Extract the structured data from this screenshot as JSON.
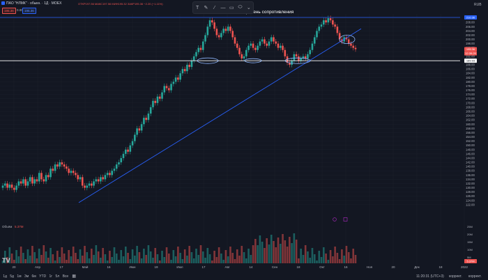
{
  "header": {
    "symbol": "ПАО \"НЛМК\" · обыкн. · 1Д · MOEX",
    "ohlc": "ОТКР197.56 МАКС197.56 МИН195.32 ЗАКР195.36 −2.20 (−1.11%)",
    "sell_price": "195.36",
    "buy_price": "195.36",
    "zero_label": "0.00",
    "currency": "RUB"
  },
  "toolbar": {
    "tools": [
      {
        "name": "text-tool-icon",
        "glyph": "T"
      },
      {
        "name": "pen-tool-icon",
        "glyph": "✎"
      },
      {
        "name": "brush-tool-icon",
        "glyph": "⁄"
      },
      {
        "name": "horizontal-line-tool-icon",
        "glyph": "—"
      },
      {
        "name": "rectangle-tool-icon",
        "glyph": "▭"
      },
      {
        "name": "ellipse-tool-icon",
        "glyph": "⬭"
      },
      {
        "name": "more-tools-icon",
        "glyph": "⌄"
      }
    ]
  },
  "annotations": {
    "resistance_label": "Уровень сопротивления"
  },
  "volume": {
    "label": "Объём",
    "value": "5.37M"
  },
  "price_axis": {
    "ticks": [
      "210.00",
      "208.00",
      "206.00",
      "204.00",
      "202.00",
      "200.00",
      "198.00",
      "196.00",
      "194.00",
      "192.00",
      "190.00",
      "188.00",
      "186.00",
      "184.00",
      "182.00",
      "180.00",
      "178.00",
      "176.00",
      "174.00",
      "172.00",
      "170.00",
      "168.00",
      "166.00",
      "164.00",
      "162.00",
      "160.00",
      "158.00",
      "156.00",
      "154.00",
      "152.00",
      "150.00",
      "148.00",
      "146.00",
      "144.00",
      "142.00",
      "140.00",
      "138.00",
      "136.00",
      "134.00",
      "132.00",
      "130.00",
      "128.00",
      "126.00",
      "124.00",
      "122.00"
    ],
    "current_price_tag": "195.36",
    "current_time_tag": "12:39:29",
    "resistance_tag": "210.36",
    "support_tag": "189.93",
    "volume_ticks": [
      "25M",
      "20M",
      "15M",
      "10M",
      "5M"
    ],
    "volume_tag": "5.37M"
  },
  "time_axis": {
    "ticks": [
      "20",
      "Апр",
      "17",
      "Май",
      "16",
      "Июн",
      "19",
      "Июл",
      "17",
      "Авг",
      "14",
      "Сен",
      "18",
      "Окт",
      "16",
      "Ноя",
      "20",
      "Дек",
      "18",
      "2022"
    ]
  },
  "bottom_bar": {
    "timeframes": [
      "1д",
      "5д",
      "1м",
      "3м",
      "6м",
      "YTD",
      "1г",
      "5л",
      "Все"
    ],
    "clock": "11:20:31 (UTC+3)",
    "mode_label": "коррект.",
    "mode_label2": "коррект."
  },
  "colors": {
    "background": "#131722",
    "up": "#26a69a",
    "down": "#ef5350",
    "trendline": "#2962ff",
    "support": "#ffffff"
  },
  "chart_data": {
    "type": "candlestick",
    "title": "",
    "ylim": [
      120,
      212
    ],
    "resistance_level": 210.36,
    "support_level": 189.93,
    "close_series": [
      131,
      132,
      130,
      131.5,
      130,
      129,
      131,
      133,
      132,
      134,
      131,
      133,
      135,
      132,
      134,
      133,
      137,
      134,
      133,
      136,
      135,
      139,
      138,
      141,
      140,
      142,
      141,
      140,
      139,
      137,
      138,
      137,
      136,
      134,
      135,
      131,
      130,
      131,
      132,
      131,
      133,
      134,
      133,
      135,
      134,
      136,
      137,
      136,
      138,
      139,
      141,
      142,
      144,
      146,
      148,
      147,
      150,
      152,
      155,
      158,
      157,
      160,
      163,
      162,
      165,
      168,
      171,
      170,
      173,
      172,
      175,
      178,
      177,
      176,
      179,
      180,
      182,
      181,
      184,
      186,
      185,
      188,
      187,
      190,
      192,
      194,
      196,
      195,
      199,
      202,
      206,
      209,
      208,
      205,
      202,
      201,
      203,
      205,
      204,
      206,
      204,
      201,
      198,
      196,
      193,
      191,
      192,
      195,
      197,
      198,
      196,
      195,
      197,
      199,
      200,
      198,
      197,
      199,
      201,
      199,
      198,
      196,
      197,
      195,
      192,
      189,
      188,
      190,
      193,
      192,
      190,
      191,
      192,
      191,
      193,
      195,
      198,
      201,
      204,
      206,
      207,
      209,
      208,
      210,
      209,
      207,
      206,
      203,
      200,
      199,
      201,
      200,
      198,
      197,
      196,
      195.36
    ]
  }
}
